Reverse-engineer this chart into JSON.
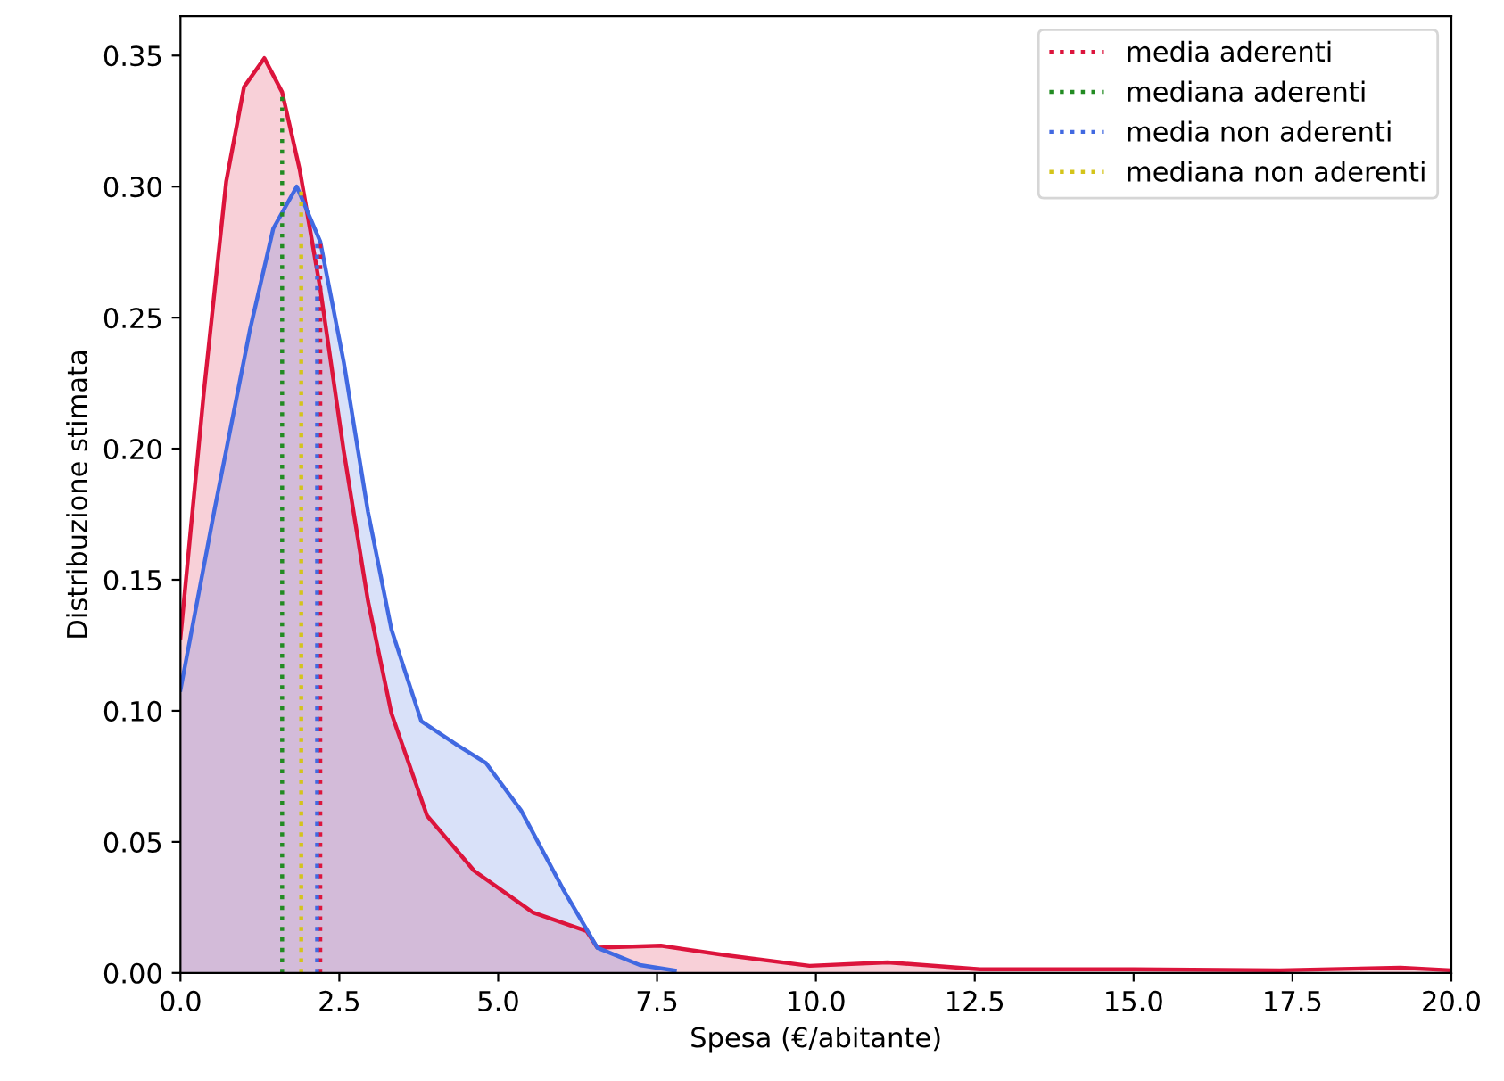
{
  "chart_data": {
    "type": "area",
    "xlabel": "Spesa (€/abitante)",
    "ylabel": "Distribuzione stimata",
    "xlim": [
      0,
      20
    ],
    "xticks": [
      {
        "value": 0,
        "label": "0.0"
      },
      {
        "value": 2.5,
        "label": "2.5"
      },
      {
        "value": 5,
        "label": "5.0"
      },
      {
        "value": 7.5,
        "label": "7.5"
      },
      {
        "value": 10,
        "label": "10.0"
      },
      {
        "value": 12.5,
        "label": "12.5"
      },
      {
        "value": 15,
        "label": "15.0"
      },
      {
        "value": 17.5,
        "label": "17.5"
      },
      {
        "value": 20,
        "label": "20.0"
      }
    ],
    "ylim": [
      0,
      0.365
    ],
    "yticks": [
      {
        "value": 0,
        "label": "0.00"
      },
      {
        "value": 0.05,
        "label": "0.05"
      },
      {
        "value": 0.1,
        "label": "0.10"
      },
      {
        "value": 0.15,
        "label": "0.15"
      },
      {
        "value": 0.2,
        "label": "0.20"
      },
      {
        "value": 0.25,
        "label": "0.25"
      },
      {
        "value": 0.3,
        "label": "0.30"
      },
      {
        "value": 0.35,
        "label": "0.35"
      }
    ],
    "grid": false,
    "legend": "top right",
    "series": [
      {
        "color": "#dc143c",
        "x": [
          0,
          0.37,
          0.72,
          1.0,
          1.32,
          1.6,
          1.88,
          2.2,
          2.57,
          2.95,
          3.32,
          3.88,
          4.62,
          5.55,
          6.39,
          6.56,
          7.56,
          8.56,
          9.9,
          11.13,
          12.58,
          15.0,
          17.3,
          19.2,
          20
        ],
        "values": [
          0.128,
          0.222,
          0.302,
          0.338,
          0.349,
          0.336,
          0.306,
          0.261,
          0.199,
          0.142,
          0.099,
          0.06,
          0.039,
          0.023,
          0.016,
          0.0096,
          0.0104,
          0.0068,
          0.0027,
          0.004,
          0.0014,
          0.0014,
          0.001,
          0.002,
          0.001
        ]
      },
      {
        "color": "#4169e1",
        "x": [
          0,
          0.53,
          1.09,
          1.46,
          1.83,
          2.2,
          2.57,
          2.95,
          3.32,
          3.79,
          4.35,
          4.81,
          5.36,
          6.02,
          6.56,
          7.23,
          7.78
        ],
        "values": [
          0.108,
          0.176,
          0.245,
          0.284,
          0.3,
          0.279,
          0.233,
          0.176,
          0.131,
          0.096,
          0.087,
          0.08,
          0.062,
          0.032,
          0.0096,
          0.003,
          0.0009
        ]
      },
      {
        "type": "line",
        "name": "media aderenti",
        "color": "#dc143c",
        "line_style": "dotted",
        "x": [
          2.2,
          2.2
        ],
        "values": [
          0,
          0.28
        ]
      },
      {
        "type": "line",
        "name": "mediana aderenti",
        "color": "#228b22",
        "line_style": "dotted",
        "x": [
          1.6,
          1.6
        ],
        "values": [
          0,
          0.335
        ]
      },
      {
        "type": "line",
        "name": "media non aderenti",
        "color": "#4169e1",
        "line_style": "dotted",
        "x": [
          2.15,
          2.15
        ],
        "values": [
          0,
          0.28
        ]
      },
      {
        "type": "line",
        "name": "mediana non aderenti",
        "color": "#d4c41a",
        "line_style": "dotted",
        "x": [
          1.9,
          1.9
        ],
        "values": [
          0,
          0.3
        ]
      }
    ]
  }
}
